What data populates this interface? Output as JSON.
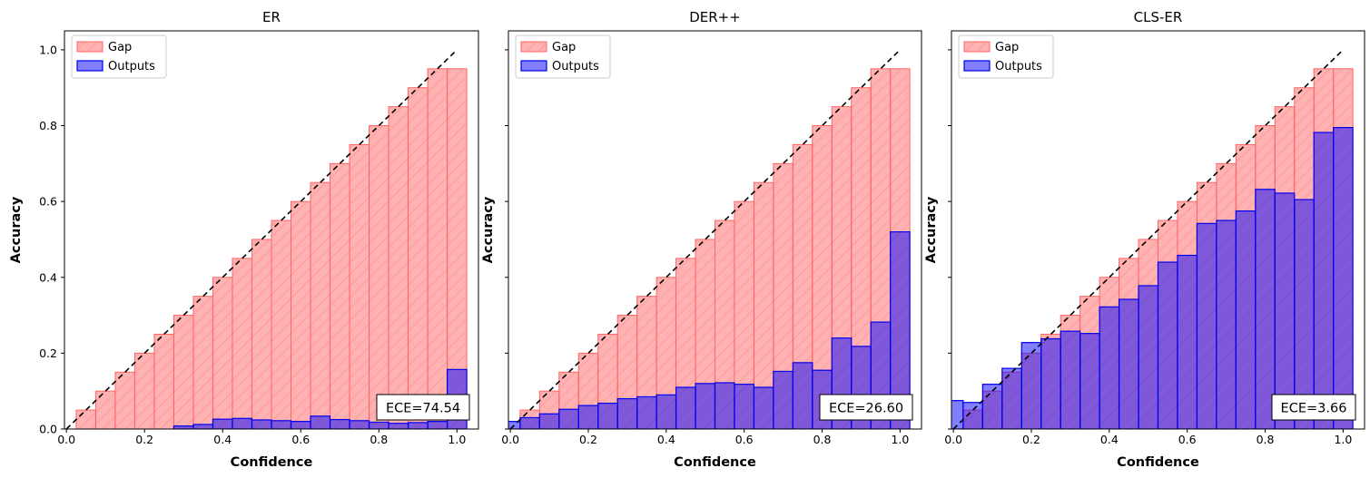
{
  "chart_data": [
    {
      "type": "bar",
      "title": "ER",
      "xlabel": "Confidence",
      "ylabel": "Accuracy",
      "xlim": [
        -0.005,
        1.055
      ],
      "ylim": [
        0,
        1.05
      ],
      "xticks": [
        "0.0",
        "0.2",
        "0.4",
        "0.6",
        "0.8",
        "1.0"
      ],
      "yticks": [
        "0.0",
        "0.2",
        "0.4",
        "0.6",
        "0.8",
        "1.0"
      ],
      "legend": {
        "placement": "top-left",
        "entries": [
          "Gap",
          "Outputs"
        ]
      },
      "bin_width": 0.05,
      "bin_centers": [
        0.05,
        0.1,
        0.15,
        0.2,
        0.25,
        0.3,
        0.35,
        0.4,
        0.45,
        0.5,
        0.55,
        0.6,
        0.65,
        0.7,
        0.75,
        0.8,
        0.85,
        0.9,
        0.95,
        1.0
      ],
      "series": [
        {
          "name": "Gap",
          "values": [
            0.05,
            0.1,
            0.15,
            0.2,
            0.25,
            0.3,
            0.35,
            0.4,
            0.45,
            0.5,
            0.55,
            0.6,
            0.65,
            0.7,
            0.75,
            0.8,
            0.85,
            0.9,
            0.95,
            0.95
          ]
        },
        {
          "name": "Outputs",
          "values": [
            0,
            0,
            0,
            0,
            0,
            0.008,
            0.012,
            0.026,
            0.028,
            0.024,
            0.022,
            0.02,
            0.034,
            0.025,
            0.022,
            0.018,
            0.015,
            0.017,
            0.02,
            0.157
          ]
        }
      ],
      "annotation": "ECE=74.54"
    },
    {
      "type": "bar",
      "title": "DER++",
      "xlabel": "Confidence",
      "ylabel": "Accuracy",
      "xlim": [
        -0.005,
        1.055
      ],
      "ylim": [
        0,
        1.05
      ],
      "xticks": [
        "0.0",
        "0.2",
        "0.4",
        "0.6",
        "0.8",
        "1.0"
      ],
      "yticks": [],
      "legend": {
        "placement": "top-left",
        "entries": [
          "Gap",
          "Outputs"
        ]
      },
      "bin_width": 0.05,
      "bin_centers": [
        0.0,
        0.05,
        0.1,
        0.15,
        0.2,
        0.25,
        0.3,
        0.35,
        0.4,
        0.45,
        0.5,
        0.55,
        0.6,
        0.65,
        0.7,
        0.75,
        0.8,
        0.85,
        0.9,
        0.95,
        1.0
      ],
      "series": [
        {
          "name": "Gap",
          "values": [
            0,
            0.05,
            0.1,
            0.15,
            0.2,
            0.25,
            0.3,
            0.35,
            0.4,
            0.45,
            0.5,
            0.55,
            0.6,
            0.65,
            0.7,
            0.75,
            0.8,
            0.85,
            0.9,
            0.95,
            0.95
          ]
        },
        {
          "name": "Outputs",
          "values": [
            0.02,
            0.03,
            0.04,
            0.052,
            0.062,
            0.068,
            0.08,
            0.085,
            0.09,
            0.11,
            0.12,
            0.122,
            0.118,
            0.11,
            0.152,
            0.175,
            0.155,
            0.24,
            0.218,
            0.282,
            0.52
          ]
        }
      ],
      "annotation": "ECE=26.60"
    },
    {
      "type": "bar",
      "title": "CLS-ER",
      "xlabel": "Confidence",
      "ylabel": "Accuracy",
      "xlim": [
        -0.005,
        1.055
      ],
      "ylim": [
        0,
        1.05
      ],
      "xticks": [
        "0.0",
        "0.2",
        "0.4",
        "0.6",
        "0.8",
        "1.0"
      ],
      "yticks": [],
      "legend": {
        "placement": "top-left",
        "entries": [
          "Gap",
          "Outputs"
        ]
      },
      "bin_width": 0.05,
      "bin_centers": [
        0.0,
        0.05,
        0.1,
        0.15,
        0.2,
        0.25,
        0.3,
        0.35,
        0.4,
        0.45,
        0.5,
        0.55,
        0.6,
        0.65,
        0.7,
        0.75,
        0.8,
        0.85,
        0.9,
        0.95,
        1.0
      ],
      "series": [
        {
          "name": "Gap",
          "values": [
            0,
            0.05,
            0.1,
            0.15,
            0.2,
            0.25,
            0.3,
            0.35,
            0.4,
            0.45,
            0.5,
            0.55,
            0.6,
            0.65,
            0.7,
            0.75,
            0.8,
            0.85,
            0.9,
            0.95,
            0.95
          ]
        },
        {
          "name": "Outputs",
          "values": [
            0.075,
            0.07,
            0.118,
            0.16,
            0.228,
            0.238,
            0.258,
            0.252,
            0.322,
            0.342,
            0.378,
            0.44,
            0.458,
            0.542,
            0.55,
            0.575,
            0.632,
            0.622,
            0.605,
            0.782,
            0.795
          ]
        }
      ],
      "annotation": "ECE=3.66"
    }
  ],
  "colors": {
    "gap_fill": "#ff0000",
    "gap_edge": "#ff6666",
    "outputs_fill": "#0000ff",
    "outputs_edge": "#0000ee",
    "diagonal": "#000000"
  }
}
